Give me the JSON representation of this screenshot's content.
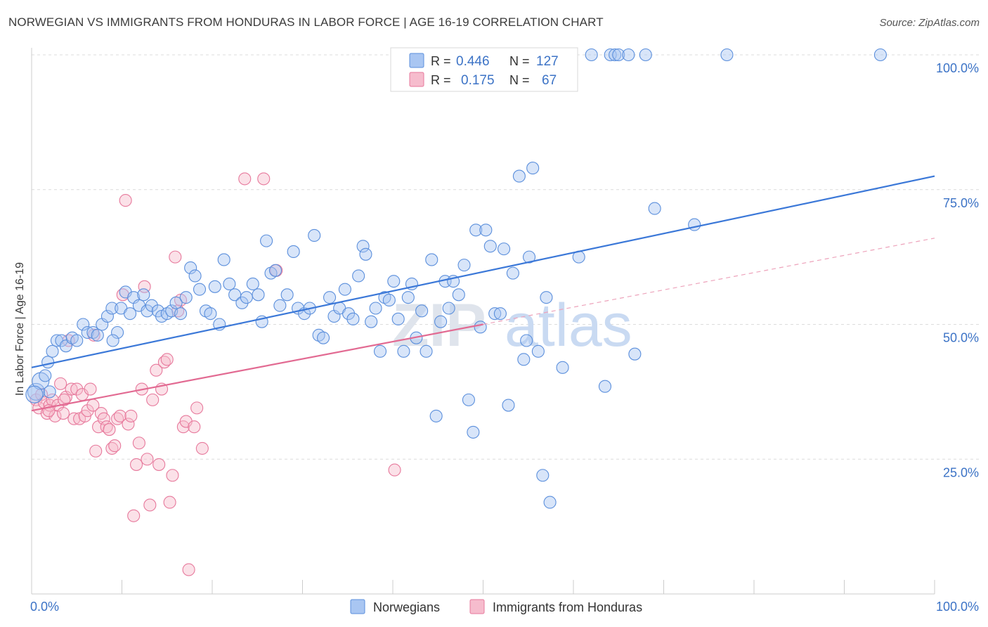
{
  "title": "NORWEGIAN VS IMMIGRANTS FROM HONDURAS IN LABOR FORCE | AGE 16-19 CORRELATION CHART",
  "source": "Source: ZipAtlas.com",
  "watermark": {
    "part1": "ZIP",
    "part2": "atlas"
  },
  "colors": {
    "blue": "#5b8fdc",
    "blue_fill": "#a9c6f2",
    "pink": "#e7799c",
    "pink_fill": "#f6bccd",
    "axis_label": "#3c73c6"
  },
  "legend_top": [
    {
      "r_label": "R =",
      "r_value": "0.446",
      "n_label": "N =",
      "n_value": "127"
    },
    {
      "r_label": "R =",
      "r_value": "0.175",
      "n_label": "N =",
      "n_value": "67"
    }
  ],
  "legend_bottom": [
    {
      "label": "Norwegians"
    },
    {
      "label": "Immigrants from Honduras"
    }
  ],
  "chart_data": {
    "type": "scatter",
    "title": "NORWEGIAN VS IMMIGRANTS FROM HONDURAS IN LABOR FORCE | AGE 16-19 CORRELATION CHART",
    "xlabel": "",
    "ylabel": "In Labor Force | Age 16-19",
    "xlim": [
      0,
      100
    ],
    "ylim": [
      0,
      100
    ],
    "x_tick_labels": [
      "0.0%",
      "100.0%"
    ],
    "y_tick_labels": [
      {
        "value": 100,
        "label": "100.0%"
      },
      {
        "value": 75,
        "label": "75.0%"
      },
      {
        "value": 50,
        "label": "50.0%"
      },
      {
        "value": 25,
        "label": "25.0%"
      }
    ],
    "grid": true,
    "legend_position": "top-center",
    "series": [
      {
        "name": "Norwegians",
        "color": "#5b8fdc",
        "r": 0.446,
        "n": 127,
        "trend": {
          "x": [
            0,
            100
          ],
          "y": [
            42,
            77.5
          ]
        },
        "points": [
          [
            0.5,
            37.5
          ],
          [
            1.0,
            39.5
          ],
          [
            1.5,
            40.5
          ],
          [
            1.8,
            43.0
          ],
          [
            2.3,
            45.0
          ],
          [
            2.8,
            47.0
          ],
          [
            3.3,
            47.0
          ],
          [
            3.8,
            46.0
          ],
          [
            4.5,
            47.5
          ],
          [
            5.0,
            47.0
          ],
          [
            5.7,
            50.0
          ],
          [
            6.2,
            48.5
          ],
          [
            6.8,
            48.5
          ],
          [
            7.3,
            48.0
          ],
          [
            7.8,
            50.0
          ],
          [
            8.4,
            51.5
          ],
          [
            8.9,
            53.0
          ],
          [
            9.5,
            48.5
          ],
          [
            9.9,
            53.0
          ],
          [
            10.4,
            56.0
          ],
          [
            10.9,
            52.0
          ],
          [
            11.3,
            55.0
          ],
          [
            11.9,
            53.5
          ],
          [
            12.4,
            55.5
          ],
          [
            12.8,
            52.5
          ],
          [
            13.3,
            53.5
          ],
          [
            14.0,
            52.5
          ],
          [
            14.4,
            51.5
          ],
          [
            15.0,
            52.0
          ],
          [
            15.5,
            52.5
          ],
          [
            16.0,
            54.0
          ],
          [
            16.5,
            52.0
          ],
          [
            17.1,
            55.0
          ],
          [
            17.6,
            60.5
          ],
          [
            18.1,
            59.0
          ],
          [
            18.6,
            56.5
          ],
          [
            19.3,
            52.5
          ],
          [
            19.8,
            52.0
          ],
          [
            20.3,
            57.0
          ],
          [
            20.8,
            50.0
          ],
          [
            21.3,
            62.0
          ],
          [
            21.9,
            57.5
          ],
          [
            22.5,
            55.5
          ],
          [
            23.3,
            54.0
          ],
          [
            23.8,
            55.0
          ],
          [
            24.5,
            57.5
          ],
          [
            25.1,
            55.5
          ],
          [
            25.5,
            50.5
          ],
          [
            26.0,
            65.5
          ],
          [
            26.5,
            59.5
          ],
          [
            27.0,
            60.0
          ],
          [
            27.5,
            53.5
          ],
          [
            28.3,
            55.5
          ],
          [
            29.0,
            63.5
          ],
          [
            29.5,
            53.0
          ],
          [
            30.2,
            52.0
          ],
          [
            30.8,
            53.0
          ],
          [
            31.3,
            66.5
          ],
          [
            31.8,
            48.0
          ],
          [
            32.3,
            47.5
          ],
          [
            33.0,
            55.0
          ],
          [
            33.5,
            51.5
          ],
          [
            34.1,
            53.0
          ],
          [
            34.7,
            56.5
          ],
          [
            35.1,
            52.0
          ],
          [
            35.6,
            51.0
          ],
          [
            36.2,
            59.0
          ],
          [
            36.7,
            64.5
          ],
          [
            37.0,
            63.0
          ],
          [
            37.6,
            50.5
          ],
          [
            38.1,
            53.0
          ],
          [
            38.6,
            45.0
          ],
          [
            39.1,
            55.0
          ],
          [
            39.6,
            54.5
          ],
          [
            40.1,
            58.0
          ],
          [
            40.6,
            51.0
          ],
          [
            41.2,
            45.0
          ],
          [
            41.7,
            55.0
          ],
          [
            42.1,
            57.5
          ],
          [
            42.6,
            47.5
          ],
          [
            43.2,
            52.5
          ],
          [
            43.7,
            45.0
          ],
          [
            44.3,
            62.0
          ],
          [
            44.8,
            33.0
          ],
          [
            45.3,
            50.5
          ],
          [
            45.8,
            58.0
          ],
          [
            46.2,
            53.0
          ],
          [
            46.7,
            58.0
          ],
          [
            47.3,
            55.5
          ],
          [
            47.9,
            61.0
          ],
          [
            48.4,
            36.0
          ],
          [
            48.9,
            30.0
          ],
          [
            49.2,
            67.5
          ],
          [
            49.7,
            49.5
          ],
          [
            50.3,
            67.5
          ],
          [
            50.8,
            64.5
          ],
          [
            51.3,
            52.0
          ],
          [
            51.9,
            52.0
          ],
          [
            52.3,
            64.0
          ],
          [
            52.8,
            35.0
          ],
          [
            53.3,
            59.5
          ],
          [
            54.0,
            77.5
          ],
          [
            54.5,
            43.5
          ],
          [
            54.8,
            47.0
          ],
          [
            55.1,
            62.5
          ],
          [
            55.5,
            79.0
          ],
          [
            56.1,
            45.0
          ],
          [
            56.6,
            22.0
          ],
          [
            57.0,
            55.0
          ],
          [
            57.4,
            17.0
          ],
          [
            58.8,
            42.0
          ],
          [
            60.6,
            62.5
          ],
          [
            62.0,
            100.0
          ],
          [
            64.1,
            100.0
          ],
          [
            64.6,
            100.0
          ],
          [
            65.0,
            100.0
          ],
          [
            66.1,
            100.0
          ],
          [
            66.8,
            44.5
          ],
          [
            68.0,
            100.0
          ],
          [
            69.0,
            71.5
          ],
          [
            73.4,
            68.5
          ],
          [
            77.0,
            100.0
          ],
          [
            94.0,
            100.0
          ],
          [
            63.5,
            38.5
          ],
          [
            0.3,
            37.0
          ],
          [
            2.0,
            37.5
          ],
          [
            9.0,
            47.0
          ]
        ]
      },
      {
        "name": "Immigrants from Honduras",
        "color": "#e7799c",
        "r": 0.175,
        "n": 67,
        "trend": {
          "x": [
            0,
            50
          ],
          "y": [
            34,
            50
          ]
        },
        "trend_dashed": {
          "x": [
            50,
            100
          ],
          "y": [
            50,
            66
          ]
        },
        "points": [
          [
            0.5,
            36.0
          ],
          [
            0.8,
            34.5
          ],
          [
            1.1,
            37.0
          ],
          [
            1.4,
            35.5
          ],
          [
            1.7,
            33.5
          ],
          [
            2.0,
            35.0
          ],
          [
            2.3,
            36.0
          ],
          [
            2.6,
            33.0
          ],
          [
            2.9,
            35.0
          ],
          [
            3.2,
            39.0
          ],
          [
            3.5,
            33.5
          ],
          [
            3.8,
            36.5
          ],
          [
            4.1,
            47.0
          ],
          [
            4.4,
            38.0
          ],
          [
            4.7,
            32.5
          ],
          [
            5.0,
            38.0
          ],
          [
            5.3,
            32.5
          ],
          [
            5.6,
            37.0
          ],
          [
            5.9,
            33.0
          ],
          [
            6.2,
            34.0
          ],
          [
            6.5,
            38.0
          ],
          [
            6.8,
            35.0
          ],
          [
            7.1,
            26.5
          ],
          [
            7.4,
            31.0
          ],
          [
            7.7,
            33.5
          ],
          [
            8.0,
            32.5
          ],
          [
            8.3,
            31.0
          ],
          [
            8.6,
            30.5
          ],
          [
            8.9,
            27.0
          ],
          [
            9.2,
            27.5
          ],
          [
            9.5,
            32.5
          ],
          [
            9.8,
            33.0
          ],
          [
            10.1,
            55.5
          ],
          [
            10.4,
            73.0
          ],
          [
            10.7,
            31.5
          ],
          [
            11.0,
            33.0
          ],
          [
            11.3,
            14.5
          ],
          [
            11.6,
            24.0
          ],
          [
            11.9,
            28.0
          ],
          [
            12.2,
            38.0
          ],
          [
            12.5,
            57.0
          ],
          [
            12.8,
            25.0
          ],
          [
            13.1,
            16.5
          ],
          [
            13.4,
            36.0
          ],
          [
            13.8,
            41.5
          ],
          [
            14.1,
            24.0
          ],
          [
            14.4,
            38.0
          ],
          [
            14.7,
            43.0
          ],
          [
            15.0,
            43.5
          ],
          [
            15.3,
            17.0
          ],
          [
            15.6,
            22.0
          ],
          [
            15.9,
            62.5
          ],
          [
            16.2,
            52.5
          ],
          [
            16.5,
            54.5
          ],
          [
            16.8,
            31.0
          ],
          [
            17.1,
            32.0
          ],
          [
            17.4,
            4.5
          ],
          [
            18.0,
            31.0
          ],
          [
            18.3,
            34.5
          ],
          [
            18.9,
            27.0
          ],
          [
            23.6,
            77.0
          ],
          [
            25.7,
            77.0
          ],
          [
            27.1,
            60.0
          ],
          [
            40.2,
            23.0
          ],
          [
            6.9,
            48.0
          ],
          [
            3.6,
            36.0
          ],
          [
            1.9,
            34.0
          ]
        ]
      }
    ]
  }
}
